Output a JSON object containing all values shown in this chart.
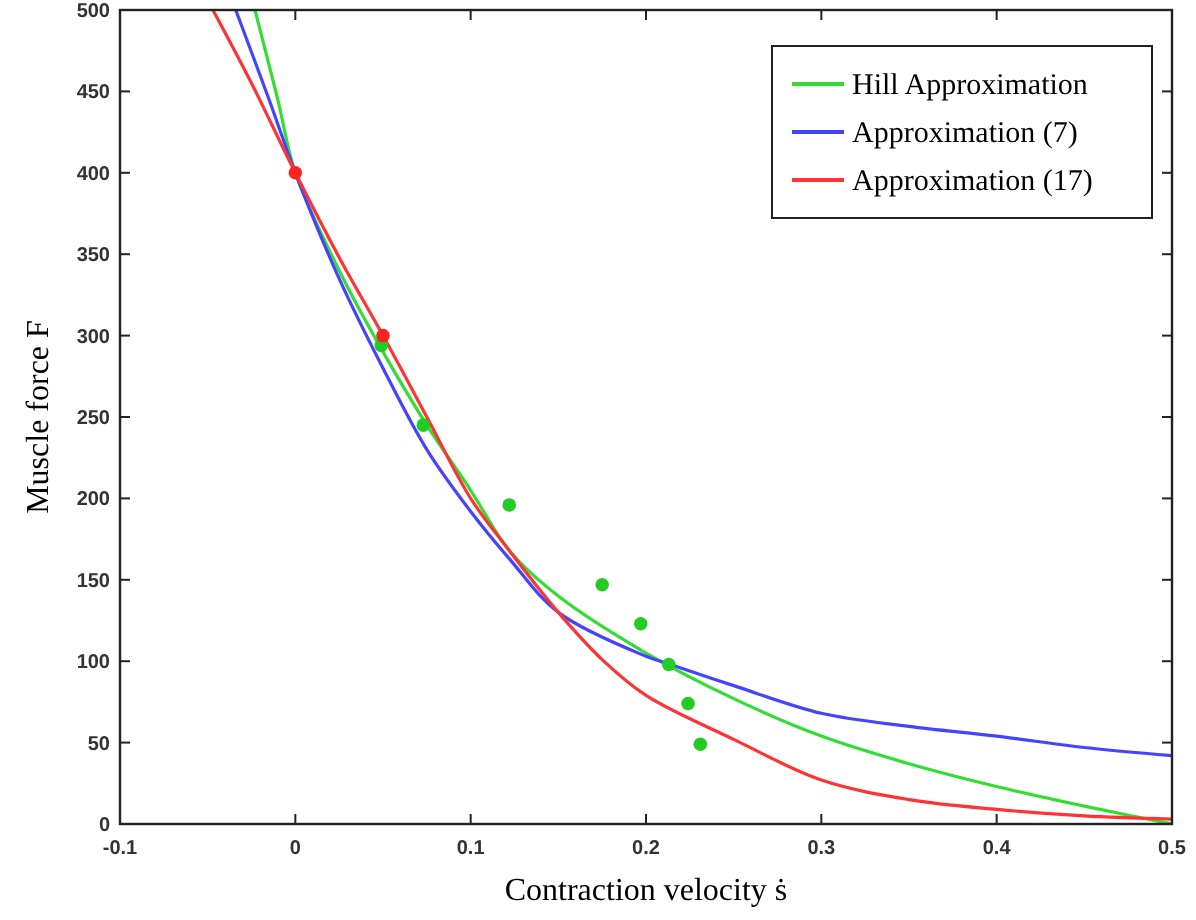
{
  "chart_data": {
    "type": "line",
    "xlabel": "Contraction velocity ṡ",
    "ylabel": "Muscle force F",
    "xlim": [
      -0.1,
      0.5
    ],
    "ylim": [
      0,
      500
    ],
    "xticks": [
      -0.1,
      0,
      0.1,
      0.2,
      0.3,
      0.4,
      0.5
    ],
    "yticks": [
      0,
      50,
      100,
      150,
      200,
      250,
      300,
      350,
      400,
      450,
      500
    ],
    "grid": false,
    "legend": "top right",
    "line_style": "solid",
    "series": [
      {
        "name": "Hill Approximation",
        "color": "#33dd33",
        "x": [
          -0.023,
          -0.01,
          0,
          0.025,
          0.05,
          0.075,
          0.1,
          0.122,
          0.15,
          0.2,
          0.25,
          0.3,
          0.35,
          0.4,
          0.45,
          0.5
        ],
        "values": [
          500,
          445,
          400,
          340,
          290,
          245,
          205,
          168,
          140,
          105,
          77,
          54,
          37,
          23,
          11,
          0
        ]
      },
      {
        "name": "Approximation (7)",
        "color": "#4444ff",
        "x": [
          -0.034,
          -0.015,
          0,
          0.025,
          0.05,
          0.075,
          0.1,
          0.122,
          0.15,
          0.2,
          0.211,
          0.25,
          0.3,
          0.35,
          0.4,
          0.45,
          0.5
        ],
        "values": [
          500,
          445,
          400,
          335,
          280,
          230,
          192,
          163,
          130,
          103,
          99,
          85,
          68,
          60,
          54,
          47,
          42
        ]
      },
      {
        "name": "Approximation (17)",
        "color": "#ff3333",
        "x": [
          -0.047,
          -0.025,
          0,
          0.025,
          0.05,
          0.075,
          0.1,
          0.122,
          0.15,
          0.175,
          0.2,
          0.25,
          0.3,
          0.35,
          0.4,
          0.45,
          0.5
        ],
        "values": [
          500,
          455,
          400,
          348,
          300,
          250,
          200,
          168,
          130,
          101,
          79,
          52,
          27,
          15,
          9,
          5,
          3
        ]
      },
      {
        "type": "scatter",
        "marker": "circle",
        "color": "#22cc22",
        "x": [
          0.049,
          0.073,
          0.122,
          0.175,
          0.197,
          0.213,
          0.224,
          0.231
        ],
        "values": [
          294,
          245,
          196,
          147,
          123,
          98,
          74,
          49
        ]
      },
      {
        "type": "scatter",
        "marker": "circle",
        "color": "#ff2222",
        "x": [
          0,
          0.05
        ],
        "values": [
          400,
          300
        ]
      }
    ]
  }
}
